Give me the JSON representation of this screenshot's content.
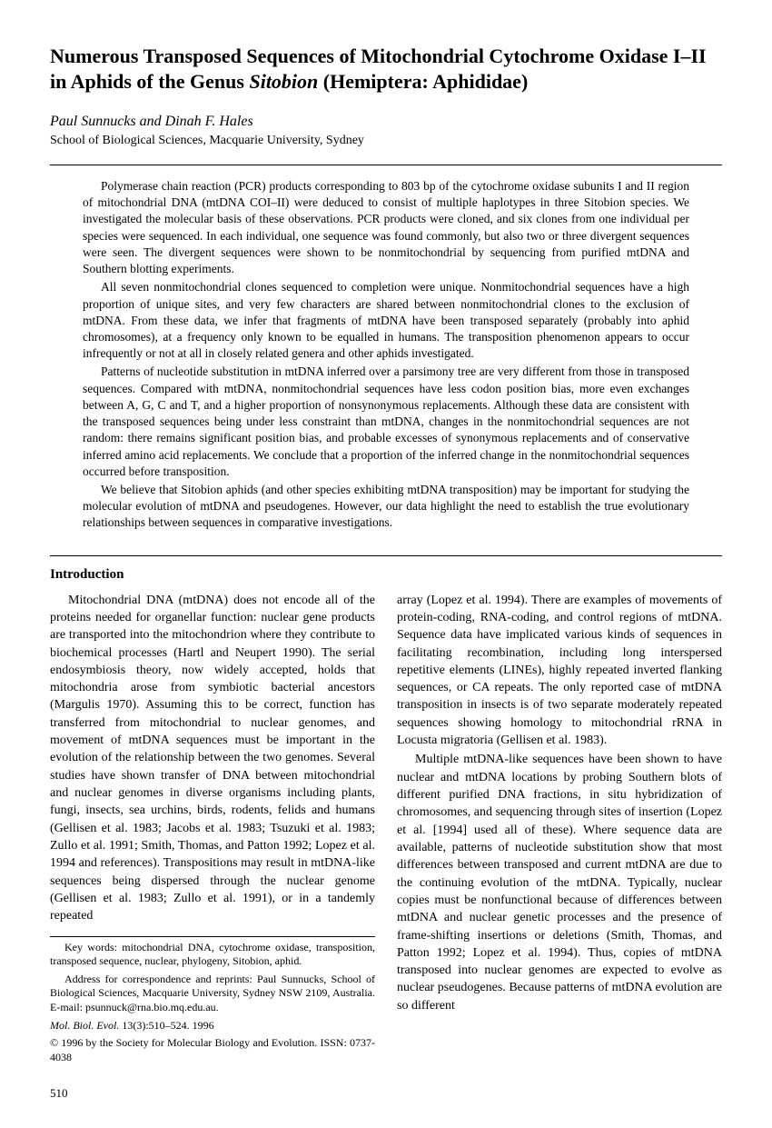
{
  "title_part1": "Numerous Transposed Sequences of Mitochondrial Cytochrome Oxidase I–II in Aphids of the Genus ",
  "title_italic": "Sitobion",
  "title_part2": " (Hemiptera: Aphididae)",
  "authors": "Paul Sunnucks and Dinah F. Hales",
  "affiliation": "School of Biological Sciences, Macquarie University, Sydney",
  "abstract": {
    "p1": "Polymerase chain reaction (PCR) products corresponding to 803 bp of the cytochrome oxidase subunits I and II region of mitochondrial DNA (mtDNA COI–II) were deduced to consist of multiple haplotypes in three Sitobion species. We investigated the molecular basis of these observations. PCR products were cloned, and six clones from one individual per species were sequenced. In each individual, one sequence was found commonly, but also two or three divergent sequences were seen. The divergent sequences were shown to be nonmitochondrial by sequencing from purified mtDNA and Southern blotting experiments.",
    "p2": "All seven nonmitochondrial clones sequenced to completion were unique. Nonmitochondrial sequences have a high proportion of unique sites, and very few characters are shared between nonmitochondrial clones to the exclusion of mtDNA. From these data, we infer that fragments of mtDNA have been transposed separately (probably into aphid chromosomes), at a frequency only known to be equalled in humans. The transposition phenomenon appears to occur infrequently or not at all in closely related genera and other aphids investigated.",
    "p3": "Patterns of nucleotide substitution in mtDNA inferred over a parsimony tree are very different from those in transposed sequences. Compared with mtDNA, nonmitochondrial sequences have less codon position bias, more even exchanges between A, G, C and T, and a higher proportion of nonsynonymous replacements. Although these data are consistent with the transposed sequences being under less constraint than mtDNA, changes in the nonmitochondrial sequences are not random: there remains significant position bias, and probable excesses of synonymous replacements and of conservative inferred amino acid replacements. We conclude that a proportion of the inferred change in the nonmitochondrial sequences occurred before transposition.",
    "p4": "We believe that Sitobion aphids (and other species exhibiting mtDNA transposition) may be important for studying the molecular evolution of mtDNA and pseudogenes. However, our data highlight the need to establish the true evolutionary relationships between sequences in comparative investigations."
  },
  "intro_heading": "Introduction",
  "col1": {
    "p1": "Mitochondrial DNA (mtDNA) does not encode all of the proteins needed for organellar function: nuclear gene products are transported into the mitochondrion where they contribute to biochemical processes (Hartl and Neupert 1990). The serial endosymbiosis theory, now widely accepted, holds that mitochondria arose from symbiotic bacterial ancestors (Margulis 1970). Assuming this to be correct, function has transferred from mitochondrial to nuclear genomes, and movement of mtDNA sequences must be important in the evolution of the relationship between the two genomes. Several studies have shown transfer of DNA between mitochondrial and nuclear genomes in diverse organisms including plants, fungi, insects, sea urchins, birds, rodents, felids and humans (Gellisen et al. 1983; Jacobs et al. 1983; Tsuzuki et al. 1983; Zullo et al. 1991; Smith, Thomas, and Patton 1992; Lopez et al. 1994 and references). Transpositions may result in mtDNA-like sequences being dispersed through the nuclear genome (Gellisen et al. 1983; Zullo et al. 1991), or in a tandemly repeated"
  },
  "col2": {
    "p1": "array (Lopez et al. 1994). There are examples of movements of protein-coding, RNA-coding, and control regions of mtDNA. Sequence data have implicated various kinds of sequences in facilitating recombination, including long interspersed repetitive elements (LINEs), highly repeated inverted flanking sequences, or CA repeats. The only reported case of mtDNA transposition in insects is of two separate moderately repeated sequences showing homology to mitochondrial rRNA in Locusta migratoria (Gellisen et al. 1983).",
    "p2": "Multiple mtDNA-like sequences have been shown to have nuclear and mtDNA locations by probing Southern blots of different purified DNA fractions, in situ hybridization of chromosomes, and sequencing through sites of insertion (Lopez et al. [1994] used all of these). Where sequence data are available, patterns of nucleotide substitution show that most differences between transposed and current mtDNA are due to the continuing evolution of the mtDNA. Typically, nuclear copies must be nonfunctional because of differences between mtDNA and nuclear genetic processes and the presence of frame-shifting insertions or deletions (Smith, Thomas, and Patton 1992; Lopez et al. 1994). Thus, copies of mtDNA transposed into nuclear genomes are expected to evolve as nuclear pseudogenes. Because patterns of mtDNA evolution are so different"
  },
  "footnotes": {
    "keywords": "Key words: mitochondrial DNA, cytochrome oxidase, transposition, transposed sequence, nuclear, phylogeny, Sitobion, aphid.",
    "address": "Address for correspondence and reprints: Paul Sunnucks, School of Biological Sciences, Macquarie University, Sydney NSW 2109, Australia. E-mail: psunnuck@rna.bio.mq.edu.au.",
    "journal": "Mol. Biol. Evol.",
    "citation": " 13(3):510–524. 1996",
    "copyright": "© 1996 by the Society for Molecular Biology and Evolution. ISSN: 0737-4038"
  },
  "page_number": "510"
}
